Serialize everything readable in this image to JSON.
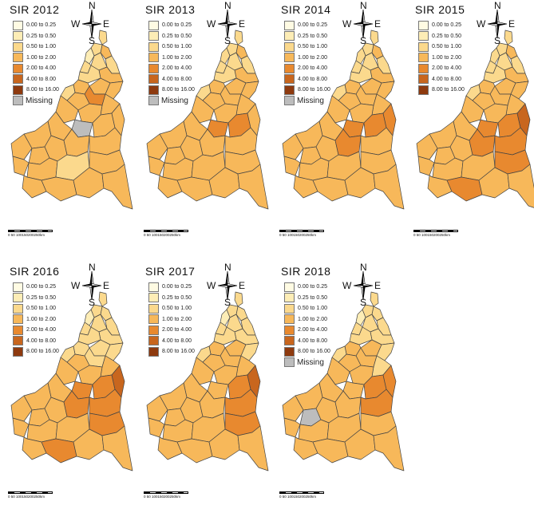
{
  "compass": {
    "n": "N",
    "s": "S",
    "e": "E",
    "w": "W"
  },
  "scale_label": "0  50 100150200250km",
  "legend_labels": [
    "0.00 to 0.25",
    "0.25 to 0.50",
    "0.50 to 1.00",
    "1.00 to 2.00",
    "2.00 to 4.00",
    "4.00 to 8.00",
    "8.00 to 16.00"
  ],
  "missing_label": "Missing",
  "colors": {
    "classes": [
      "#FFFBE3",
      "#FDEDB6",
      "#FBD98D",
      "#F7B85A",
      "#E8892F",
      "#C8661E",
      "#8E3A0F"
    ],
    "missing": "#BDBDBD",
    "border": "#444444"
  },
  "panels": [
    {
      "title": "SIR  2012",
      "show_missing": true,
      "levels": [
        2,
        3,
        2,
        2,
        1,
        2,
        2,
        3,
        2,
        3,
        3,
        3,
        4,
        2,
        3,
        3,
        3,
        3,
        3,
        3,
        3,
        3,
        3,
        3,
        3,
        3,
        3,
        3,
        3,
        3,
        2,
        3,
        3,
        3,
        3,
        3
      ],
      "missing_regions": [
        18
      ]
    },
    {
      "title": "SIR  2013",
      "show_missing": true,
      "levels": [
        2,
        3,
        2,
        2,
        2,
        2,
        2,
        3,
        2,
        3,
        3,
        3,
        3,
        2,
        3,
        3,
        3,
        3,
        4,
        4,
        3,
        3,
        3,
        3,
        3,
        3,
        3,
        3,
        3,
        3,
        3,
        3,
        3,
        3,
        3,
        3
      ],
      "missing_regions": []
    },
    {
      "title": "SIR  2014",
      "show_missing": true,
      "levels": [
        2,
        3,
        2,
        2,
        2,
        2,
        2,
        3,
        2,
        3,
        3,
        3,
        3,
        2,
        3,
        3,
        3,
        3,
        4,
        4,
        4,
        3,
        3,
        3,
        3,
        3,
        4,
        3,
        3,
        3,
        3,
        3,
        3,
        3,
        3,
        3
      ],
      "missing_regions": []
    },
    {
      "title": "SIR  2015",
      "show_missing": false,
      "levels": [
        2,
        3,
        2,
        2,
        2,
        2,
        2,
        3,
        2,
        3,
        3,
        3,
        3,
        2,
        3,
        3,
        3,
        3,
        4,
        4,
        5,
        3,
        3,
        3,
        3,
        3,
        4,
        4,
        3,
        3,
        3,
        4,
        3,
        4,
        3,
        3
      ],
      "missing_regions": []
    },
    {
      "title": "SIR  2016",
      "show_missing": false,
      "levels": [
        2,
        2,
        2,
        2,
        1,
        2,
        2,
        2,
        2,
        2,
        2,
        2,
        2,
        2,
        3,
        3,
        3,
        3,
        4,
        4,
        5,
        3,
        3,
        3,
        3,
        3,
        4,
        4,
        3,
        3,
        3,
        4,
        3,
        4,
        3,
        3
      ],
      "missing_regions": []
    },
    {
      "title": "SIR  2017",
      "show_missing": false,
      "levels": [
        2,
        2,
        2,
        2,
        1,
        2,
        2,
        2,
        2,
        3,
        3,
        2,
        3,
        2,
        3,
        3,
        3,
        3,
        3,
        4,
        5,
        3,
        3,
        3,
        3,
        3,
        3,
        4,
        3,
        3,
        3,
        4,
        3,
        3,
        3,
        3
      ],
      "missing_regions": []
    },
    {
      "title": "SIR  2018",
      "show_missing": true,
      "levels": [
        2,
        2,
        2,
        2,
        1,
        2,
        2,
        2,
        2,
        3,
        3,
        2,
        3,
        2,
        3,
        2,
        3,
        3,
        3,
        4,
        4,
        3,
        3,
        3,
        2,
        3,
        3,
        4,
        3,
        3,
        3,
        3,
        3,
        3,
        3,
        3
      ],
      "missing_regions": [
        24
      ]
    }
  ]
}
